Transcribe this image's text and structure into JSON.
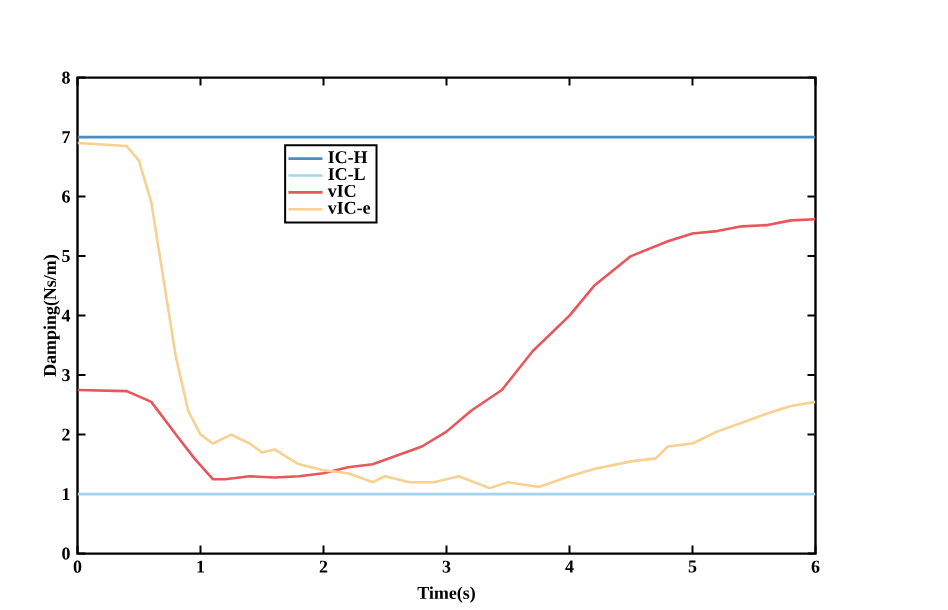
{
  "chart_data": {
    "type": "line",
    "xlabel": "Time(s)",
    "ylabel": "Damping(Ns/m)",
    "xlim": [
      0,
      6
    ],
    "ylim": [
      0,
      8
    ],
    "xticks": [
      0,
      1,
      2,
      3,
      4,
      5,
      6
    ],
    "yticks": [
      0,
      1,
      2,
      3,
      4,
      5,
      6,
      7,
      8
    ],
    "legend": "top left",
    "grid": false,
    "line_style": "solid",
    "series": [
      {
        "name": "IC-H",
        "color": "#4a8fc0",
        "x": [
          0,
          6
        ],
        "values": [
          7,
          7
        ]
      },
      {
        "name": "IC-L",
        "color": "#a3d6ee",
        "x": [
          0,
          6
        ],
        "values": [
          1,
          1
        ]
      },
      {
        "name": "vIC",
        "color": "#e8555a",
        "x": [
          0,
          0.4,
          0.6,
          0.8,
          0.95,
          1.1,
          1.2,
          1.4,
          1.6,
          1.8,
          2.0,
          2.2,
          2.4,
          2.6,
          2.8,
          3.0,
          3.2,
          3.45,
          3.7,
          4.0,
          4.2,
          4.5,
          4.8,
          5.0,
          5.2,
          5.4,
          5.6,
          5.8,
          6.0
        ],
        "values": [
          2.75,
          2.73,
          2.55,
          2.0,
          1.6,
          1.25,
          1.25,
          1.3,
          1.28,
          1.3,
          1.35,
          1.45,
          1.5,
          1.65,
          1.8,
          2.05,
          2.4,
          2.75,
          3.4,
          4.0,
          4.5,
          5.0,
          5.25,
          5.38,
          5.42,
          5.5,
          5.52,
          5.6,
          5.62
        ]
      },
      {
        "name": "vIC-e",
        "color": "#f8d090",
        "x": [
          0,
          0.4,
          0.5,
          0.6,
          0.7,
          0.8,
          0.9,
          1.0,
          1.1,
          1.25,
          1.4,
          1.5,
          1.6,
          1.8,
          2.0,
          2.2,
          2.4,
          2.5,
          2.7,
          2.9,
          3.1,
          3.35,
          3.5,
          3.75,
          4.0,
          4.2,
          4.5,
          4.7,
          4.8,
          5.0,
          5.2,
          5.4,
          5.6,
          5.8,
          6.0
        ],
        "values": [
          6.9,
          6.85,
          6.6,
          5.9,
          4.6,
          3.3,
          2.4,
          2.0,
          1.85,
          2.0,
          1.85,
          1.7,
          1.75,
          1.5,
          1.4,
          1.35,
          1.2,
          1.3,
          1.2,
          1.2,
          1.3,
          1.1,
          1.2,
          1.12,
          1.3,
          1.42,
          1.55,
          1.6,
          1.8,
          1.85,
          2.05,
          2.2,
          2.35,
          2.48,
          2.55
        ]
      }
    ]
  }
}
